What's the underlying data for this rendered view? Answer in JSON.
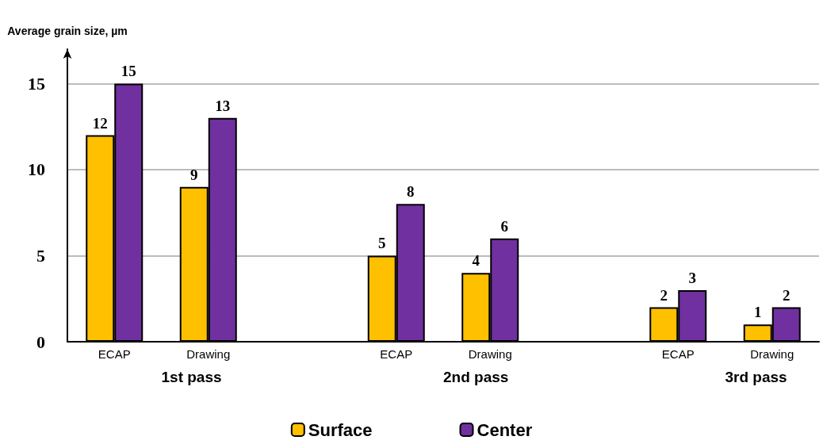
{
  "chart_data": {
    "type": "bar",
    "ylabel": "Average grain size, µm",
    "categories": [
      "ECAP",
      "Drawing",
      null,
      "ECAP",
      "Drawing",
      null,
      "ECAP",
      "Drawing"
    ],
    "series": [
      {
        "name": "Surface",
        "color": "#ffc000",
        "values": [
          12,
          9,
          null,
          5,
          4,
          null,
          2,
          1
        ]
      },
      {
        "name": "Center",
        "color": "#7030a0",
        "values": [
          15,
          13,
          null,
          8,
          6,
          null,
          3,
          2
        ]
      }
    ],
    "ylim": [
      0,
      17
    ],
    "yticks": [
      0,
      5,
      10,
      15
    ],
    "grid": "y",
    "legend": "bottom",
    "data_labels": true,
    "annotations": [
      "1st pass",
      "2nd pass",
      "3rd pass"
    ]
  }
}
